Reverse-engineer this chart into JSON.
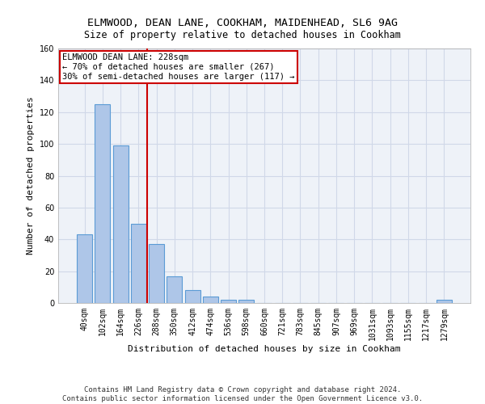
{
  "title1": "ELMWOOD, DEAN LANE, COOKHAM, MAIDENHEAD, SL6 9AG",
  "title2": "Size of property relative to detached houses in Cookham",
  "xlabel": "Distribution of detached houses by size in Cookham",
  "ylabel": "Number of detached properties",
  "categories": [
    "40sqm",
    "102sqm",
    "164sqm",
    "226sqm",
    "288sqm",
    "350sqm",
    "412sqm",
    "474sqm",
    "536sqm",
    "598sqm",
    "660sqm",
    "721sqm",
    "783sqm",
    "845sqm",
    "907sqm",
    "969sqm",
    "1031sqm",
    "1093sqm",
    "1155sqm",
    "1217sqm",
    "1279sqm"
  ],
  "values": [
    43,
    125,
    99,
    50,
    37,
    17,
    8,
    4,
    2,
    2,
    0,
    0,
    0,
    0,
    0,
    0,
    0,
    0,
    0,
    0,
    2
  ],
  "bar_color": "#aec6e8",
  "bar_edge_color": "#5b9bd5",
  "annotation_box_color": "#ffffff",
  "annotation_border_color": "#cc0000",
  "vline_color": "#cc0000",
  "vline_x_index": 3,
  "annotation_text_line1": "ELMWOOD DEAN LANE: 228sqm",
  "annotation_text_line2": "← 70% of detached houses are smaller (267)",
  "annotation_text_line3": "30% of semi-detached houses are larger (117) →",
  "ylim": [
    0,
    160
  ],
  "yticks": [
    0,
    20,
    40,
    60,
    80,
    100,
    120,
    140,
    160
  ],
  "grid_color": "#d0d8e8",
  "bg_color": "#eef2f8",
  "footer_text": "Contains HM Land Registry data © Crown copyright and database right 2024.\nContains public sector information licensed under the Open Government Licence v3.0.",
  "title_fontsize": 9.5,
  "subtitle_fontsize": 8.5,
  "axis_label_fontsize": 8,
  "tick_fontsize": 7,
  "annotation_fontsize": 7.5,
  "footer_fontsize": 6.5
}
